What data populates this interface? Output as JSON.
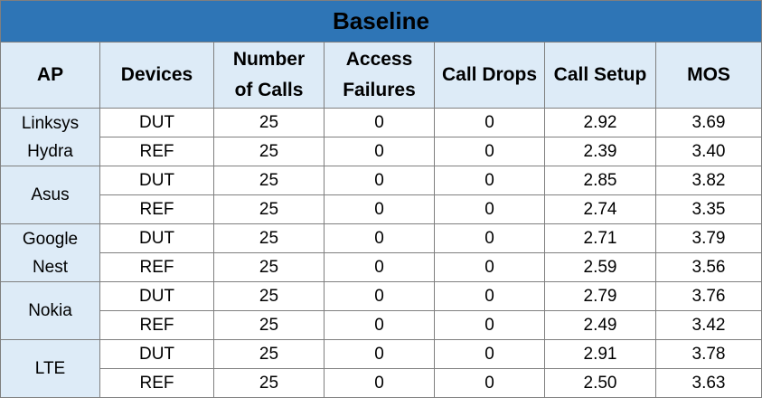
{
  "title": "Baseline",
  "headers": [
    {
      "lines": [
        "AP"
      ]
    },
    {
      "lines": [
        "Devices"
      ]
    },
    {
      "lines": [
        "Number",
        "of Calls"
      ]
    },
    {
      "lines": [
        "Access",
        "Failures"
      ]
    },
    {
      "lines": [
        "Call Drops"
      ]
    },
    {
      "lines": [
        "Call Setup"
      ]
    },
    {
      "lines": [
        "MOS"
      ]
    }
  ],
  "groups": [
    {
      "ap_lines": [
        "Linksys",
        "Hydra"
      ],
      "rows": [
        {
          "device": "DUT",
          "calls": "25",
          "access_failures": "0",
          "call_drops": "0",
          "call_setup": "2.92",
          "mos": "3.69"
        },
        {
          "device": "REF",
          "calls": "25",
          "access_failures": "0",
          "call_drops": "0",
          "call_setup": "2.39",
          "mos": "3.40"
        }
      ]
    },
    {
      "ap_lines": [
        "Asus"
      ],
      "rows": [
        {
          "device": "DUT",
          "calls": "25",
          "access_failures": "0",
          "call_drops": "0",
          "call_setup": "2.85",
          "mos": "3.82"
        },
        {
          "device": "REF",
          "calls": "25",
          "access_failures": "0",
          "call_drops": "0",
          "call_setup": "2.74",
          "mos": "3.35"
        }
      ]
    },
    {
      "ap_lines": [
        "Google",
        "Nest"
      ],
      "rows": [
        {
          "device": "DUT",
          "calls": "25",
          "access_failures": "0",
          "call_drops": "0",
          "call_setup": "2.71",
          "mos": "3.79"
        },
        {
          "device": "REF",
          "calls": "25",
          "access_failures": "0",
          "call_drops": "0",
          "call_setup": "2.59",
          "mos": "3.56"
        }
      ]
    },
    {
      "ap_lines": [
        "Nokia"
      ],
      "rows": [
        {
          "device": "DUT",
          "calls": "25",
          "access_failures": "0",
          "call_drops": "0",
          "call_setup": "2.79",
          "mos": "3.76"
        },
        {
          "device": "REF",
          "calls": "25",
          "access_failures": "0",
          "call_drops": "0",
          "call_setup": "2.49",
          "mos": "3.42"
        }
      ]
    },
    {
      "ap_lines": [
        "LTE"
      ],
      "rows": [
        {
          "device": "DUT",
          "calls": "25",
          "access_failures": "0",
          "call_drops": "0",
          "call_setup": "2.91",
          "mos": "3.78"
        },
        {
          "device": "REF",
          "calls": "25",
          "access_failures": "0",
          "call_drops": "0",
          "call_setup": "2.50",
          "mos": "3.63"
        }
      ]
    }
  ],
  "colors": {
    "title_band": "#2e75b6",
    "header_fill": "#ddebf7",
    "ap_fill": "#ddebf7",
    "grid_line": "#7f7f7f",
    "cell_fill": "#ffffff"
  }
}
